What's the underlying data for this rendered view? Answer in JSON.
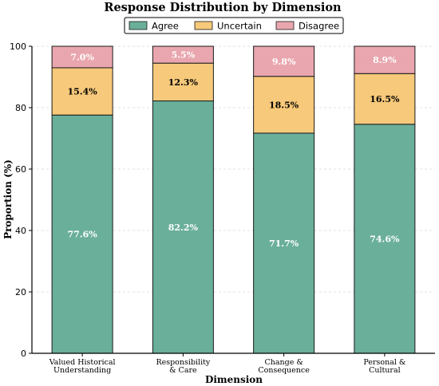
{
  "chart_data": {
    "type": "bar",
    "stacked": true,
    "title": "Response Distribution by Dimension",
    "xlabel": "Dimension",
    "ylabel": "Proportion (%)",
    "ylim": [
      0,
      100
    ],
    "yticks": [
      0,
      20,
      40,
      60,
      80,
      100
    ],
    "grid": "y-dashed",
    "legend_position": "top-center",
    "categories": [
      [
        "Valued Historical",
        "Understanding"
      ],
      [
        "Responsibility",
        "& Care"
      ],
      [
        "Change &",
        "Consequence"
      ],
      [
        "Personal &",
        "Cultural"
      ]
    ],
    "series": [
      {
        "name": "Agree",
        "color": "#6aaf9a",
        "label_color": "#ffffff",
        "values": [
          77.6,
          82.2,
          71.7,
          74.6
        ],
        "labels": [
          "77.6%",
          "82.2%",
          "71.7%",
          "74.6%"
        ]
      },
      {
        "name": "Uncertain",
        "color": "#f7c97a",
        "label_color": "#000000",
        "values": [
          15.4,
          12.3,
          18.5,
          16.5
        ],
        "labels": [
          "15.4%",
          "12.3%",
          "18.5%",
          "16.5%"
        ]
      },
      {
        "name": "Disagree",
        "color": "#e9a6ae",
        "label_color": "#ffffff",
        "values": [
          7.0,
          5.5,
          9.8,
          8.9
        ],
        "labels": [
          "7.0%",
          "5.5%",
          "9.8%",
          "8.9%"
        ]
      }
    ]
  }
}
